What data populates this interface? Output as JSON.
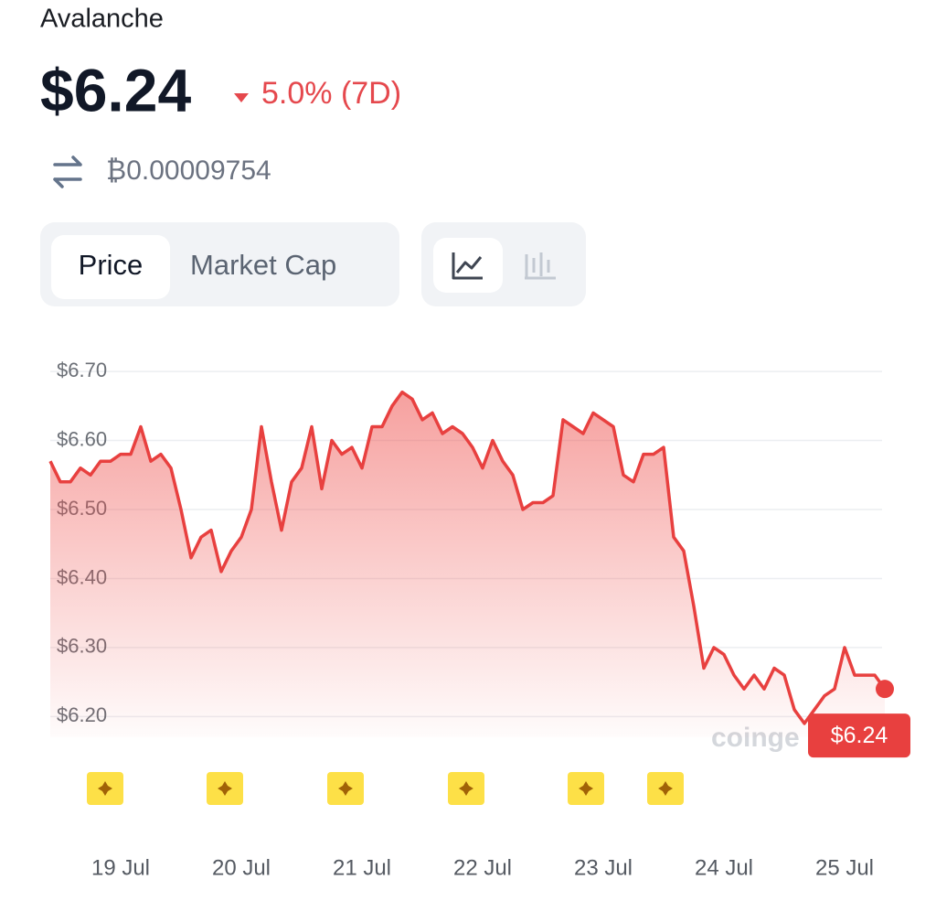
{
  "header": {
    "name": "Avalanche",
    "price": "$6.24",
    "change": "5.0% (7D)",
    "btc_price": "₿0.00009754"
  },
  "tabs": [
    "Price",
    "Market Cap"
  ],
  "watermark": "coinge",
  "chart_data": {
    "type": "line",
    "categories": [
      null,
      null,
      null,
      null,
      null,
      null,
      null,
      "19 Jul",
      null,
      null,
      null,
      null,
      null,
      null,
      null,
      null,
      null,
      null,
      null,
      "20 Jul",
      null,
      null,
      null,
      null,
      null,
      null,
      null,
      null,
      null,
      null,
      null,
      "21 Jul",
      null,
      null,
      null,
      null,
      null,
      null,
      null,
      null,
      null,
      null,
      null,
      "22 Jul",
      null,
      null,
      null,
      null,
      null,
      null,
      null,
      null,
      null,
      null,
      null,
      "23 Jul",
      null,
      null,
      null,
      null,
      null,
      null,
      null,
      null,
      null,
      null,
      null,
      "24 Jul",
      null,
      null,
      null,
      null,
      null,
      null,
      null,
      null,
      null,
      null,
      null,
      "25 Jul",
      null,
      null,
      null,
      null
    ],
    "series": [
      {
        "color": "#e8403f",
        "end_label": "$6.24",
        "values": [
          6.57,
          6.54,
          6.54,
          6.56,
          6.55,
          6.57,
          6.57,
          6.58,
          6.58,
          6.62,
          6.57,
          6.58,
          6.56,
          6.5,
          6.43,
          6.46,
          6.47,
          6.41,
          6.44,
          6.46,
          6.5,
          6.62,
          6.54,
          6.47,
          6.54,
          6.56,
          6.62,
          6.53,
          6.6,
          6.58,
          6.59,
          6.56,
          6.62,
          6.62,
          6.65,
          6.67,
          6.66,
          6.63,
          6.64,
          6.61,
          6.62,
          6.61,
          6.59,
          6.56,
          6.6,
          6.57,
          6.55,
          6.5,
          6.51,
          6.51,
          6.52,
          6.63,
          6.62,
          6.61,
          6.64,
          6.63,
          6.62,
          6.55,
          6.54,
          6.58,
          6.58,
          6.59,
          6.46,
          6.44,
          6.36,
          6.27,
          6.3,
          6.29,
          6.26,
          6.24,
          6.26,
          6.24,
          6.27,
          6.26,
          6.21,
          6.19,
          6.21,
          6.23,
          6.24,
          6.3,
          6.26,
          6.26,
          6.26,
          6.24
        ]
      }
    ],
    "ylim": [
      6.17,
      6.72
    ],
    "yticks": [
      {
        "value": 6.2,
        "label": "$6.20"
      },
      {
        "value": 6.3,
        "label": "$6.30"
      },
      {
        "value": 6.4,
        "label": "$6.40"
      },
      {
        "value": 6.5,
        "label": "$6.50"
      },
      {
        "value": 6.6,
        "label": "$6.60"
      },
      {
        "value": 6.7,
        "label": "$6.70"
      }
    ],
    "grid": true
  }
}
